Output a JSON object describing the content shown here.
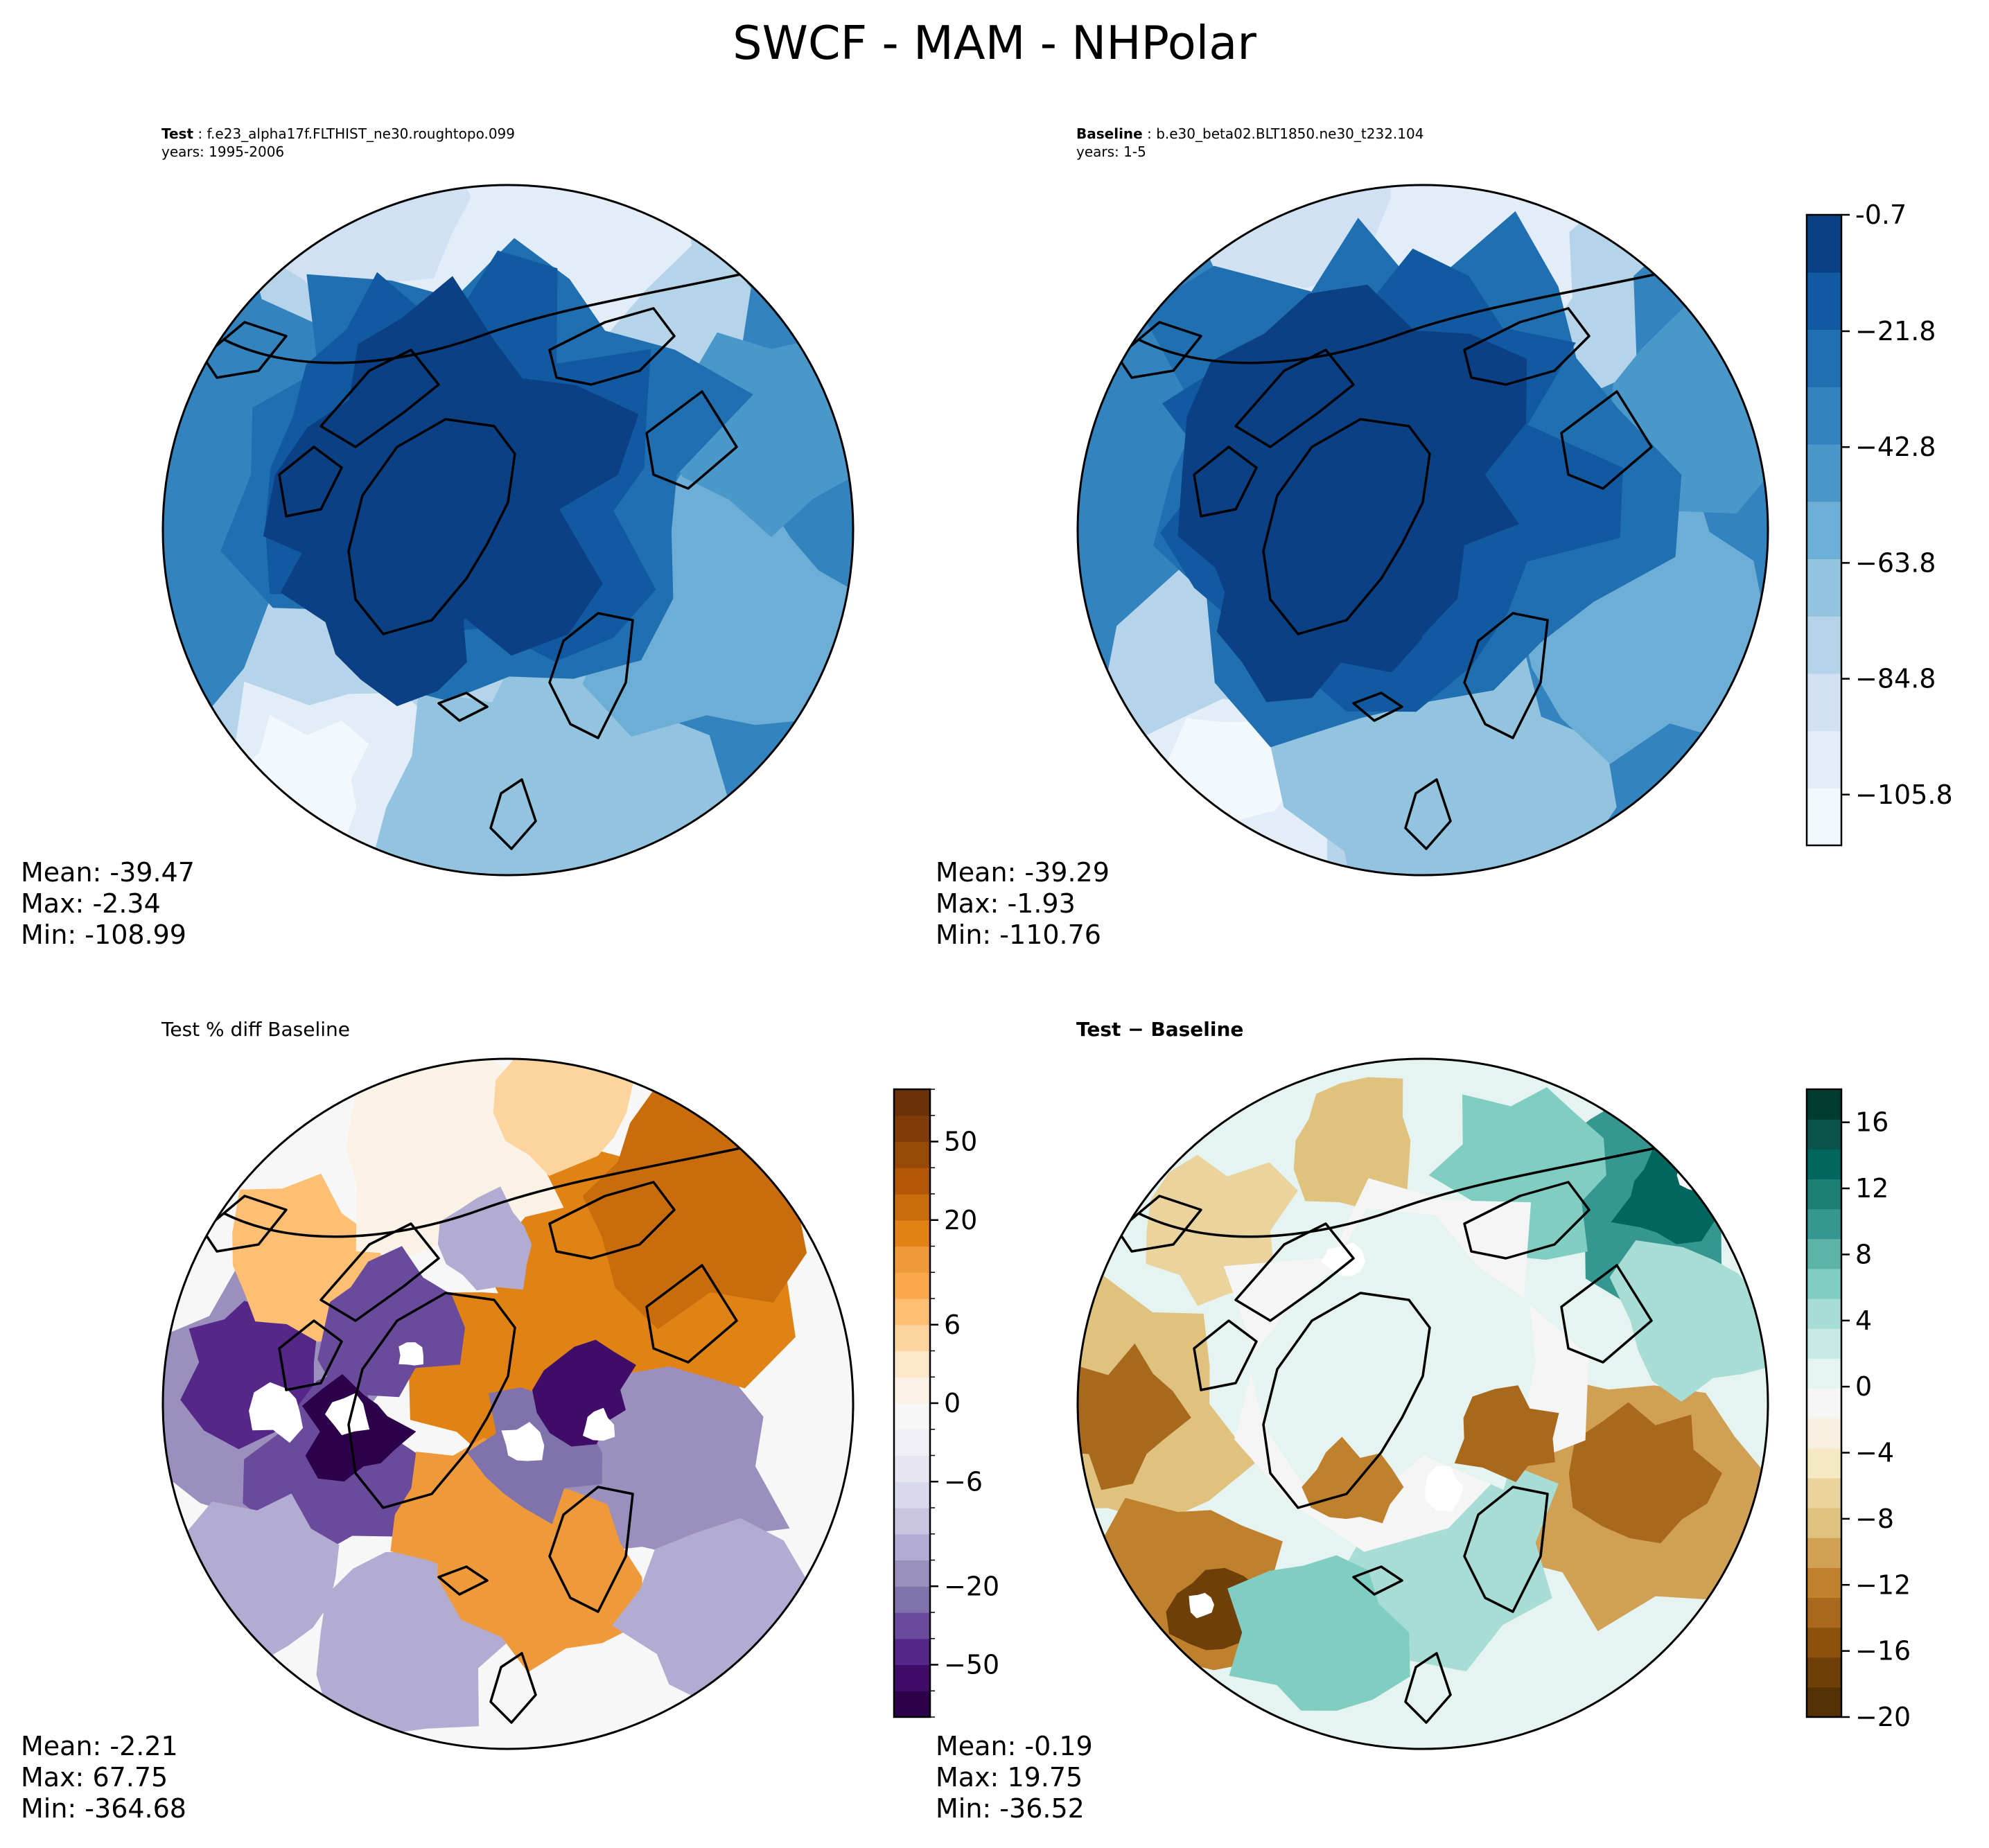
{
  "figure": {
    "title": "SWCF - MAM - NHPolar"
  },
  "panels": {
    "test": {
      "label": "Test",
      "case": "f.e23_alpha17f.FLTHIST_ne30.roughtopo.099",
      "years": "years: 1995-2006",
      "stats": {
        "mean": "Mean: -39.47",
        "max": "Max: -2.34",
        "min": "Min: -108.99"
      }
    },
    "baseline": {
      "label": "Baseline",
      "case": "b.e30_beta02.BLT1850.ne30_t232.104",
      "years": "years: 1-5",
      "stats": {
        "mean": "Mean: -39.29",
        "max": "Max: -1.93",
        "min": "Min: -110.76"
      }
    },
    "pctdiff": {
      "title": "Test % diff Baseline",
      "stats": {
        "mean": "Mean: -2.21",
        "max": "Max: 67.75",
        "min": "Min: -364.68"
      }
    },
    "diff": {
      "title_a": "Test",
      "title_sep": " − ",
      "title_b": "Baseline",
      "stats": {
        "mean": "Mean: -0.19",
        "max": "Max: 19.75",
        "min": "Min: -36.52"
      }
    }
  },
  "chart_data": [
    {
      "type": "heatmap",
      "name": "test-map",
      "projection": "north polar stereographic",
      "title": "Test: f.e23_alpha17f.FLTHIST_ne30.roughtopo.099",
      "variable": "SWCF",
      "mean": -39.47,
      "max": -2.34,
      "min": -108.99
    },
    {
      "type": "heatmap",
      "name": "baseline-map",
      "projection": "north polar stereographic",
      "title": "Baseline: b.e30_beta02.BLT1850.ne30_t232.104",
      "variable": "SWCF",
      "mean": -39.29,
      "max": -1.93,
      "min": -110.76
    },
    {
      "type": "heatmap",
      "name": "pctdiff-map",
      "projection": "north polar stereographic",
      "title": "Test % diff Baseline",
      "mean": -2.21,
      "max": 67.75,
      "min": -364.68
    },
    {
      "type": "heatmap",
      "name": "diff-map",
      "projection": "north polar stereographic",
      "title": "Test − Baseline",
      "mean": -0.19,
      "max": 19.75,
      "min": -36.52
    }
  ],
  "colorbars": {
    "main": {
      "range": [
        -115,
        -0.7
      ],
      "ticks": [
        "-0.7",
        "−21.8",
        "−42.8",
        "−63.8",
        "−84.8",
        "−105.8"
      ],
      "tick_values": [
        -0.7,
        -21.8,
        -42.8,
        -63.8,
        -84.8,
        -105.8
      ],
      "colors": [
        "#f3f8fd",
        "#e2edf8",
        "#cfe1f2",
        "#b5d4e9",
        "#93c4df",
        "#6caed6",
        "#4a98c9",
        "#3383be",
        "#1f6fb1",
        "#1159a1",
        "#0b4085"
      ]
    },
    "pct": {
      "levels": [
        -100,
        -75,
        -50,
        -40,
        -30,
        -20,
        -15,
        -10,
        -8,
        -6,
        -4,
        -2,
        0,
        2,
        4,
        6,
        8,
        10,
        15,
        20,
        30,
        40,
        50,
        75,
        100
      ],
      "ticks": [
        "50",
        "20",
        "6",
        "0",
        "−6",
        "−20",
        "−50"
      ],
      "tick_values": [
        50,
        20,
        6,
        0,
        -6,
        -20,
        -50
      ],
      "colors": [
        "#2d004b",
        "#3f0d68",
        "#542788",
        "#6a4a9a",
        "#8073ac",
        "#9a8fbd",
        "#b2abd2",
        "#c9c4e1",
        "#d8daeb",
        "#e6e5f1",
        "#efeff5",
        "#f7f7f7",
        "#fbf2e6",
        "#fde7c8",
        "#fdd49e",
        "#fdbf74",
        "#f9a94b",
        "#ef9a3a",
        "#e08214",
        "#c96c0c",
        "#b35806",
        "#974a06",
        "#7f3b08",
        "#6a3208"
      ]
    },
    "diff": {
      "range": [
        -20,
        18
      ],
      "ticks": [
        "16",
        "12",
        "8",
        "4",
        "0",
        "−4",
        "−8",
        "−12",
        "−16",
        "−20"
      ],
      "tick_values": [
        16,
        12,
        8,
        4,
        0,
        -4,
        -8,
        -12,
        -16,
        -20
      ],
      "colors": [
        "#543005",
        "#6e3f08",
        "#8c510a",
        "#a8691d",
        "#bf812d",
        "#d0a055",
        "#dfc27d",
        "#ead39c",
        "#f6e8c3",
        "#f7f0e0",
        "#f5f5f5",
        "#e5f3f1",
        "#c7eae5",
        "#a8ddd5",
        "#80cdc1",
        "#5cb3a8",
        "#35978f",
        "#1e7f76",
        "#01665e",
        "#0b5249",
        "#003c30"
      ]
    }
  }
}
